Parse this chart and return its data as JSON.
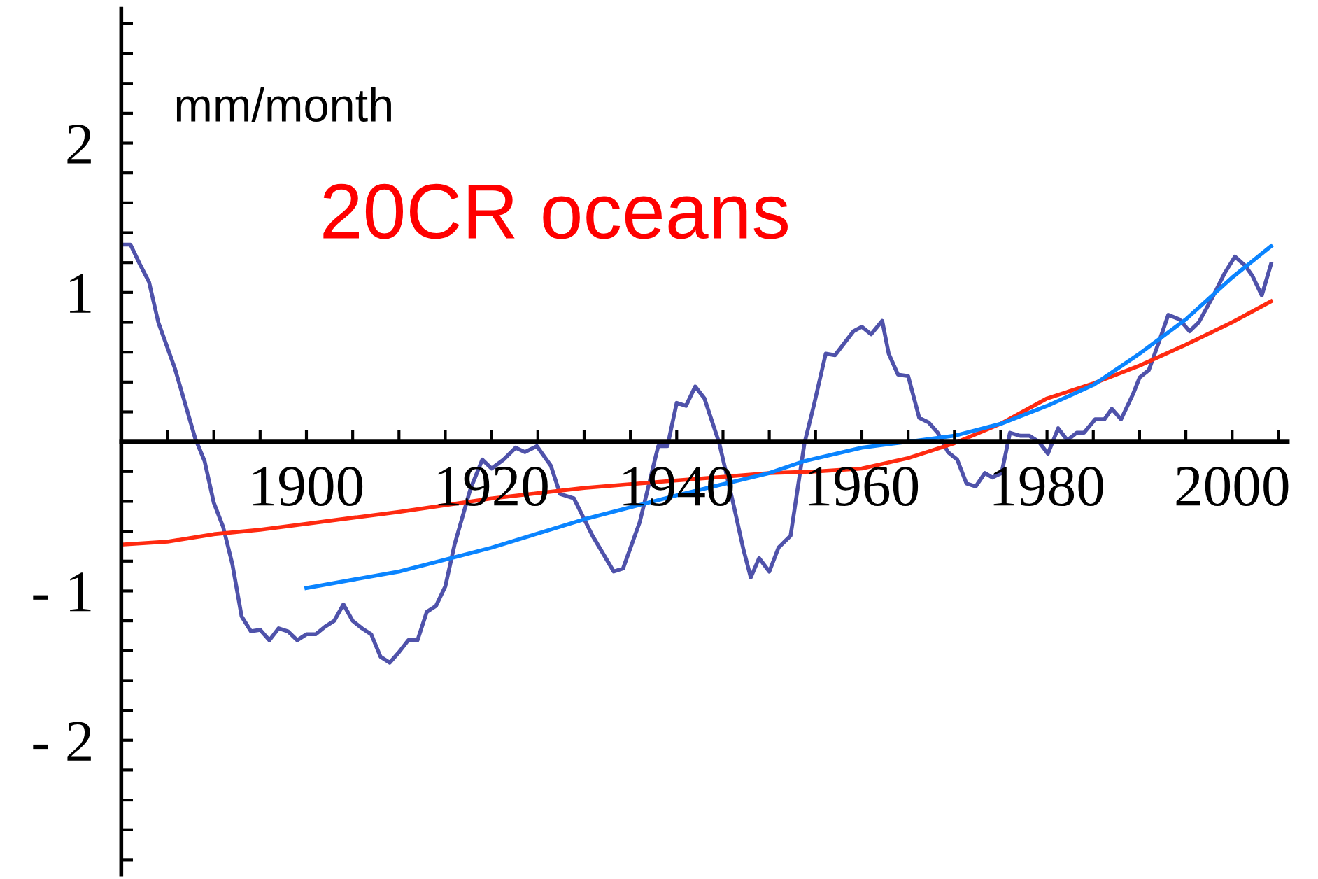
{
  "chart_data": {
    "type": "line",
    "title": "20CR oceans",
    "ylabel": "mm/month",
    "xlim": [
      1880,
      2006
    ],
    "ylim": [
      -2.9,
      2.9
    ],
    "xticks": [
      {
        "value": 1885,
        "label": null
      },
      {
        "value": 1890,
        "label": null
      },
      {
        "value": 1895,
        "label": null
      },
      1900,
      {
        "value": 1905,
        "label": null
      },
      {
        "value": 1910,
        "label": null
      },
      {
        "value": 1915,
        "label": null
      },
      1920,
      {
        "value": 1925,
        "label": null
      },
      {
        "value": 1930,
        "label": null
      },
      {
        "value": 1935,
        "label": null
      },
      1940,
      {
        "value": 1945,
        "label": null
      },
      {
        "value": 1950,
        "label": null
      },
      {
        "value": 1955,
        "label": null
      },
      1960,
      {
        "value": 1965,
        "label": null
      },
      {
        "value": 1970,
        "label": null
      },
      {
        "value": 1975,
        "label": null
      },
      1980,
      {
        "value": 1985,
        "label": null
      },
      {
        "value": 1990,
        "label": null
      },
      {
        "value": 1995,
        "label": null
      },
      2000,
      {
        "value": 2005,
        "label": null
      }
    ],
    "yticks": [
      {
        "value": -2.8,
        "label": null
      },
      {
        "value": -2.6,
        "label": null
      },
      {
        "value": -2.4,
        "label": null
      },
      {
        "value": -2.2,
        "label": null
      },
      {
        "value": -2,
        "label": "- 2"
      },
      {
        "value": -1.8,
        "label": null
      },
      {
        "value": -1.6,
        "label": null
      },
      {
        "value": -1.4,
        "label": null
      },
      {
        "value": -1.2,
        "label": null
      },
      {
        "value": -1,
        "label": "- 1"
      },
      {
        "value": -0.8,
        "label": null
      },
      {
        "value": -0.6,
        "label": null
      },
      {
        "value": -0.4,
        "label": null
      },
      {
        "value": -0.2,
        "label": null
      },
      {
        "value": 0.2,
        "label": null
      },
      {
        "value": 0.4,
        "label": null
      },
      {
        "value": 0.6,
        "label": null
      },
      {
        "value": 0.8,
        "label": null
      },
      1,
      {
        "value": 1.2,
        "label": null
      },
      {
        "value": 1.4,
        "label": null
      },
      {
        "value": 1.6,
        "label": null
      },
      {
        "value": 1.8,
        "label": null
      },
      2,
      {
        "value": 2.2,
        "label": null
      },
      {
        "value": 2.4,
        "label": null
      },
      {
        "value": 2.6,
        "label": null
      },
      {
        "value": 2.8,
        "label": null
      }
    ],
    "grid": false,
    "legend": false,
    "series": [
      {
        "color": "#4f52aa",
        "x": [
          1880,
          1881,
          1882,
          1883,
          1884,
          1885.8,
          1888,
          1889,
          1890,
          1891,
          1892,
          1893,
          1894,
          1895,
          1896,
          1897,
          1898,
          1899,
          1900,
          1901,
          1902,
          1903,
          1904,
          1905,
          1906,
          1907,
          1908,
          1909,
          1910,
          1911,
          1912,
          1913,
          1914,
          1915,
          1916,
          1917.7,
          1919,
          1920,
          1921.3,
          1922.6,
          1923.6,
          1924.9,
          1926.4,
          1927.4,
          1928.9,
          1930.9,
          1933.2,
          1934.2,
          1936,
          1938,
          1939,
          1940,
          1941,
          1942,
          1943,
          1944.6,
          1946.2,
          1947.2,
          1948,
          1948.9,
          1950,
          1951,
          1952.3,
          1953.8,
          1954.8,
          1956.1,
          1957.1,
          1959.1,
          1960,
          1961,
          1962.2,
          1962.9,
          1963.9,
          1965,
          1966.2,
          1967.2,
          1968.2,
          1969.3,
          1970.3,
          1971.3,
          1972.3,
          1973.3,
          1974.1,
          1975.1,
          1976,
          1977.1,
          1978.1,
          1979.1,
          1980.1,
          1981.2,
          1982.2,
          1983.2,
          1984,
          1985.2,
          1986.2,
          1987,
          1988,
          1989.3,
          1990,
          1991,
          1992.1,
          1993.1,
          1994.3,
          1995.4,
          1996.4,
          1997.9,
          1999.2,
          2000.3,
          2001.4,
          2002.2,
          2003.2,
          2004.2
        ],
        "values": [
          1.32,
          1.32,
          1.19,
          1.07,
          0.8,
          0.49,
          0.02,
          -0.13,
          -0.41,
          -0.57,
          -0.82,
          -1.17,
          -1.27,
          -1.26,
          -1.33,
          -1.25,
          -1.27,
          -1.33,
          -1.29,
          -1.29,
          -1.24,
          -1.2,
          -1.09,
          -1.2,
          -1.25,
          -1.29,
          -1.44,
          -1.48,
          -1.41,
          -1.33,
          -1.33,
          -1.14,
          -1.1,
          -0.97,
          -0.69,
          -0.32,
          -0.12,
          -0.18,
          -0.12,
          -0.04,
          -0.07,
          -0.03,
          -0.16,
          -0.35,
          -0.38,
          -0.63,
          -0.87,
          -0.85,
          -0.54,
          -0.03,
          -0.03,
          0.26,
          0.24,
          0.37,
          0.29,
          -0.01,
          -0.44,
          -0.72,
          -0.91,
          -0.78,
          -0.87,
          -0.71,
          -0.63,
          -0.01,
          0.24,
          0.59,
          0.58,
          0.74,
          0.77,
          0.72,
          0.81,
          0.59,
          0.45,
          0.44,
          0.16,
          0.13,
          0.06,
          -0.07,
          -0.12,
          -0.28,
          -0.3,
          -0.21,
          -0.24,
          -0.21,
          0.06,
          0.04,
          0.04,
          0.0,
          -0.08,
          0.09,
          0.01,
          0.06,
          0.06,
          0.15,
          0.15,
          0.22,
          0.15,
          0.32,
          0.43,
          0.48,
          0.67,
          0.85,
          0.82,
          0.74,
          0.8,
          0.97,
          1.13,
          1.24,
          1.18,
          1.11,
          0.98,
          1.19
        ]
      },
      {
        "color": "#ff2a10",
        "x": [
          1880,
          1885,
          1890,
          1895,
          1900,
          1910,
          1920,
          1930,
          1940,
          1950,
          1955,
          1960,
          1965,
          1970,
          1975,
          1980,
          1985,
          1990,
          1995,
          2000,
          2004.2
        ],
        "values": [
          -0.69,
          -0.67,
          -0.62,
          -0.59,
          -0.55,
          -0.47,
          -0.38,
          -0.31,
          -0.26,
          -0.21,
          -0.2,
          -0.18,
          -0.11,
          -0.01,
          0.12,
          0.29,
          0.39,
          0.51,
          0.65,
          0.8,
          0.94
        ]
      },
      {
        "color": "#0a84ff",
        "x": [
          1900,
          1910,
          1920,
          1930,
          1940,
          1950,
          1953.8,
          1960,
          1965,
          1970,
          1975,
          1980,
          1985,
          1990,
          1995,
          2000,
          2004.2
        ],
        "values": [
          -0.98,
          -0.87,
          -0.71,
          -0.52,
          -0.36,
          -0.21,
          -0.13,
          -0.04,
          0.0,
          0.04,
          0.12,
          0.24,
          0.38,
          0.59,
          0.82,
          1.1,
          1.31
        ]
      }
    ]
  }
}
